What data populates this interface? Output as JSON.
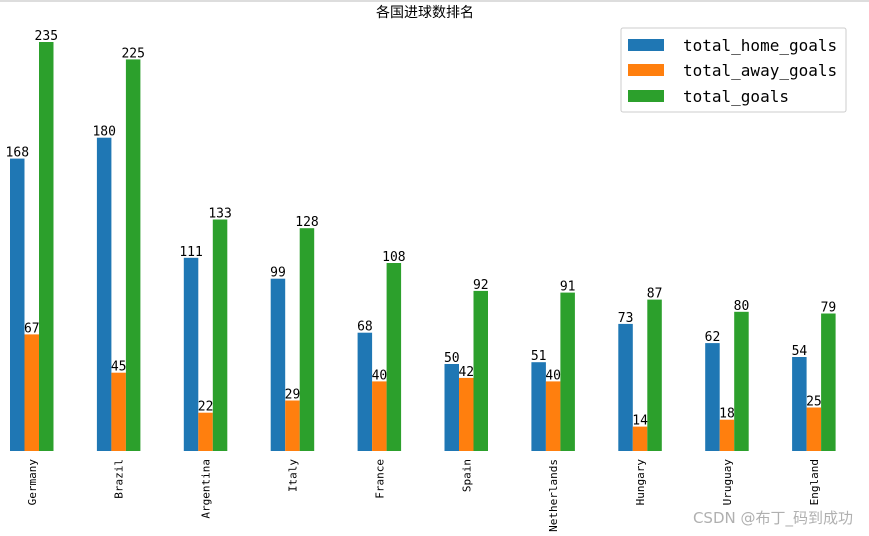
{
  "chart_data": {
    "type": "bar",
    "title": "各国进球数排名",
    "xlabel": "",
    "ylabel": "",
    "categories": [
      "Germany",
      "Brazil",
      "Argentina",
      "Italy",
      "France",
      "Spain",
      "Netherlands",
      "Hungary",
      "Uruguay",
      "England"
    ],
    "series": [
      {
        "name": "total_home_goals",
        "color": "#1f77b4",
        "values": [
          168,
          180,
          111,
          99,
          68,
          50,
          51,
          73,
          62,
          54
        ]
      },
      {
        "name": "total_away_goals",
        "color": "#ff7f0e",
        "values": [
          67,
          45,
          22,
          29,
          40,
          42,
          40,
          14,
          18,
          25
        ]
      },
      {
        "name": "total_goals",
        "color": "#2ca02c",
        "values": [
          235,
          225,
          133,
          128,
          108,
          92,
          91,
          87,
          80,
          79
        ]
      }
    ],
    "ylim": [
      0,
      240
    ],
    "legend": "top-right",
    "grid": false,
    "data_labels": true
  },
  "watermark": "CSDN @布丁_码到成功"
}
